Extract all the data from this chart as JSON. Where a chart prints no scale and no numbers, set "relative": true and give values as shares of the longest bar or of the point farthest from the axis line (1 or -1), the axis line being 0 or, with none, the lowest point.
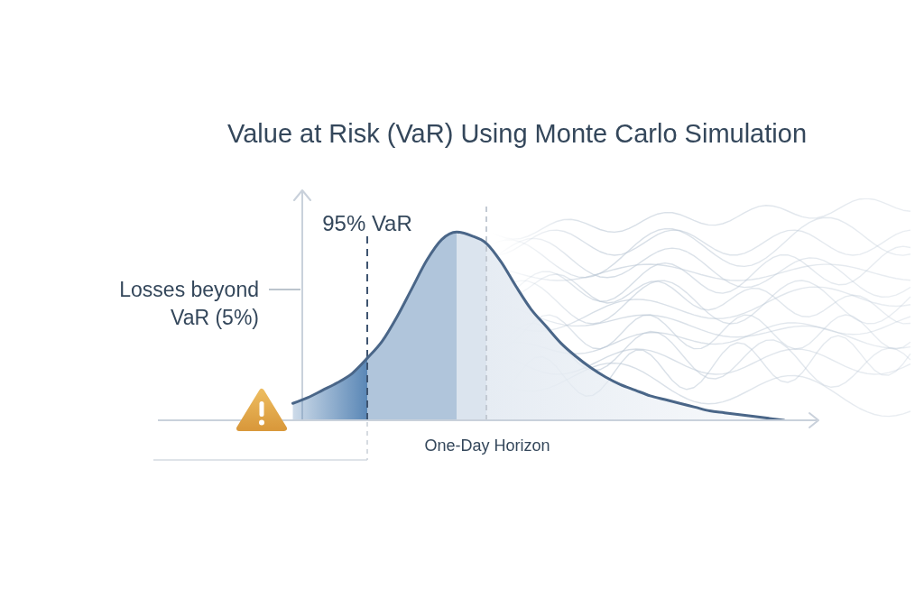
{
  "chart_data": {
    "type": "area",
    "title": "Value at Risk (VaR) Using Monte Carlo Simulation",
    "xlabel": "One-Day Horizon",
    "relative": true,
    "categories": [
      null,
      null,
      null,
      null,
      null,
      null,
      null,
      null,
      null,
      null,
      null,
      null,
      null,
      null,
      null,
      null,
      null,
      null,
      null,
      null,
      null,
      null,
      null,
      null,
      null,
      null,
      null,
      null,
      null,
      null,
      null,
      null,
      null,
      null,
      null,
      null,
      null,
      null,
      null,
      null,
      null,
      null,
      null
    ],
    "series": [
      {
        "color": "#5a87b6",
        "values": [
          null,
          null,
          null,
          null,
          null,
          null,
          null,
          null,
          null,
          0.09,
          0.12,
          0.16,
          0.2,
          0.25,
          0.33,
          null,
          null,
          null,
          null,
          null,
          null,
          null,
          null,
          null,
          null,
          null,
          null,
          null,
          null,
          null,
          null,
          null,
          null,
          null,
          null,
          null,
          null,
          null,
          null,
          null,
          null,
          null,
          null
        ]
      },
      {
        "color": "#b0c5db",
        "values": [
          null,
          null,
          null,
          null,
          null,
          null,
          null,
          null,
          null,
          null,
          null,
          null,
          null,
          null,
          0.33,
          0.42,
          0.55,
          0.7,
          0.85,
          0.96,
          1,
          null,
          null,
          null,
          null,
          null,
          null,
          null,
          null,
          null,
          null,
          null,
          null,
          null,
          null,
          null,
          null,
          null,
          null,
          null,
          null,
          null,
          null
        ]
      },
      {
        "color": "#dbe4ee",
        "values": [
          null,
          null,
          null,
          null,
          null,
          null,
          null,
          null,
          null,
          null,
          null,
          null,
          null,
          null,
          null,
          null,
          null,
          null,
          null,
          null,
          1,
          0.98,
          0.94,
          null,
          null,
          null,
          null,
          null,
          null,
          null,
          null,
          null,
          null,
          null,
          null,
          null,
          null,
          null,
          null,
          null,
          null,
          null,
          null
        ]
      },
      {
        "color": "#e6ecf3",
        "values": [
          null,
          null,
          null,
          null,
          null,
          null,
          null,
          null,
          null,
          null,
          null,
          null,
          null,
          null,
          null,
          null,
          null,
          null,
          null,
          null,
          null,
          null,
          0.94,
          0.84,
          0.71,
          0.59,
          0.5,
          0.41,
          0.34,
          0.28,
          0.23,
          0.19,
          0.16,
          0.13,
          0.11,
          0.09,
          0.07,
          0.05,
          0.04,
          0.03,
          0.02,
          0.01,
          0
        ]
      },
      {
        "type": "line",
        "color": "#4a6688",
        "values": [
          null,
          null,
          null,
          null,
          null,
          null,
          null,
          null,
          null,
          0.09,
          0.12,
          0.16,
          0.2,
          0.25,
          0.33,
          0.42,
          0.55,
          0.7,
          0.85,
          0.96,
          1,
          0.98,
          0.94,
          0.84,
          0.71,
          0.59,
          0.5,
          0.41,
          0.34,
          0.28,
          0.23,
          0.19,
          0.16,
          0.13,
          0.11,
          0.09,
          0.07,
          0.05,
          0.04,
          0.03,
          0.02,
          0.01,
          0
        ]
      }
    ],
    "annotations": [
      "95% VaR",
      "Losses beyond VaR (5%)"
    ]
  }
}
